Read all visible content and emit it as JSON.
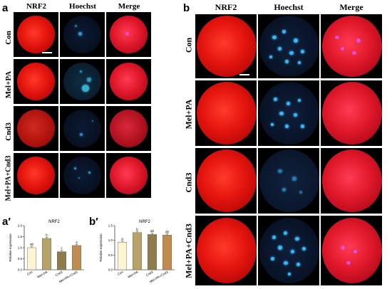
{
  "panels": {
    "a": "a",
    "b": "b",
    "a_prime": "a′",
    "b_prime": "b′"
  },
  "columns": [
    "NRF2",
    "Hoechst",
    "Merge"
  ],
  "rows": [
    "Con",
    "Mel+PA",
    "Cnd3",
    "Mel+PA+Cnd3"
  ],
  "colors": {
    "nrf2_red": "#e4140e",
    "hoechst_blue": "#33b8ff",
    "merge_pink": "#e0182a",
    "bar_con": "#fdf4d4",
    "bar_melpa": "#b7a36a",
    "bar_cnd3": "#8e7d4a",
    "bar_combo": "#c18a4e"
  },
  "chart_data": [
    {
      "type": "bar",
      "title": "NRF2",
      "ylabel": "Relative expression",
      "categories": [
        "Con",
        "Mel+PA",
        "Cnd3",
        "Mel+PA+Cnd3"
      ],
      "values": [
        1.0,
        1.42,
        0.82,
        1.1
      ],
      "letters": [
        "ab",
        "b",
        "c",
        "a"
      ],
      "yticks": [
        "0.0",
        "0.5",
        "1.0",
        "1.5",
        "2.0"
      ],
      "ylim": [
        0,
        2.0
      ]
    },
    {
      "type": "bar",
      "title": "NRF2",
      "ylabel": "Relative expression",
      "categories": [
        "Con",
        "Mel+PA",
        "Cnd3",
        "Mel+PA+Cnd3"
      ],
      "values": [
        1.0,
        1.35,
        1.28,
        1.26
      ],
      "letters": [
        "a",
        "b",
        "ab",
        "ab"
      ],
      "yticks": [
        "0.0",
        "0.5",
        "1.0",
        "1.5"
      ],
      "ylim": [
        0,
        1.6
      ]
    }
  ]
}
